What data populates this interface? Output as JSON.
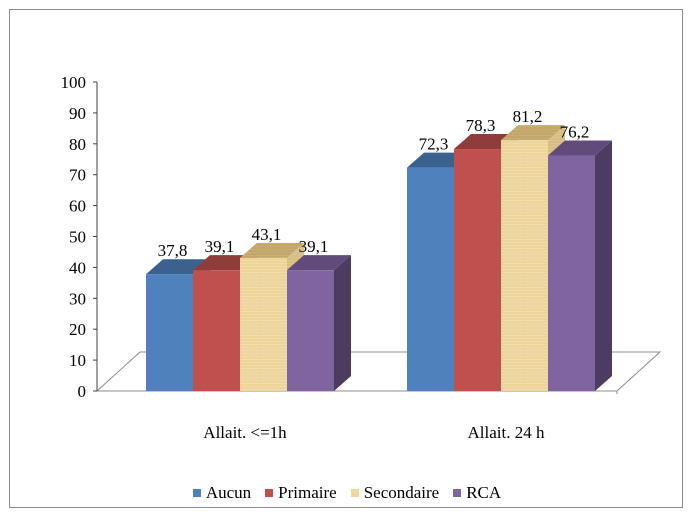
{
  "chart_data": {
    "type": "bar",
    "categories": [
      "Allait. <=1h",
      "Allait. 24 h"
    ],
    "series": [
      {
        "name": "Aucun",
        "values": [
          37.8,
          72.3
        ],
        "labels": [
          "37,8",
          "72,3"
        ],
        "color": "#4F81BD"
      },
      {
        "name": "Primaire",
        "values": [
          39.1,
          78.3
        ],
        "labels": [
          "39,1",
          "78,3"
        ],
        "color": "#C0504D"
      },
      {
        "name": "Secondaire",
        "values": [
          43.1,
          81.2
        ],
        "labels": [
          "43,1",
          "81,2"
        ],
        "color": "#F0D9A0"
      },
      {
        "name": "RCA",
        "values": [
          39.1,
          76.2
        ],
        "labels": [
          "39,1",
          "76,2"
        ],
        "color": "#8064A2"
      }
    ],
    "y_ticks": [
      "0",
      "10",
      "20",
      "30",
      "40",
      "50",
      "60",
      "70",
      "80",
      "90",
      "100"
    ],
    "ylim": [
      0,
      100
    ],
    "legend_position": "bottom",
    "grid": false,
    "title": "",
    "xlabel": "",
    "ylabel": ""
  }
}
